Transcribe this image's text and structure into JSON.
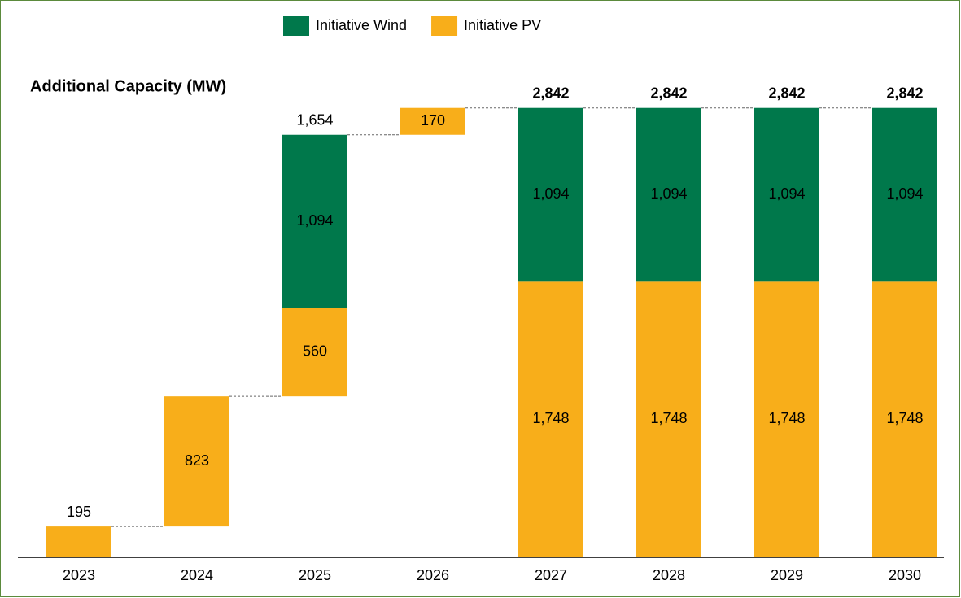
{
  "chart_data": {
    "type": "waterfall",
    "title": "Additional Capacity (MW)",
    "categories": [
      "2023",
      "2024",
      "2025",
      "2026",
      "2027",
      "2028",
      "2029",
      "2030"
    ],
    "series": [
      {
        "name": "Initiative PV",
        "color": "#f8ae1a",
        "values": [
          195,
          823,
          560,
          170,
          1748,
          1748,
          1748,
          1748
        ],
        "value_labels": [
          null,
          "823",
          "560",
          "170",
          "1,748",
          "1,748",
          "1,748",
          "1,748"
        ]
      },
      {
        "name": "Initiative Wind",
        "color": "#00784b",
        "values": [
          null,
          null,
          1094,
          null,
          1094,
          1094,
          1094,
          1094
        ],
        "value_labels": [
          null,
          null,
          "1,094",
          null,
          "1,094",
          "1,094",
          "1,094",
          "1,094"
        ]
      }
    ],
    "totals": [
      195,
      null,
      1654,
      null,
      2842,
      2842,
      2842,
      2842
    ],
    "total_labels": [
      "195",
      null,
      "1,654",
      null,
      "2,842",
      "2,842",
      "2,842",
      "2,842"
    ],
    "ylim": [
      0,
      3000
    ]
  }
}
